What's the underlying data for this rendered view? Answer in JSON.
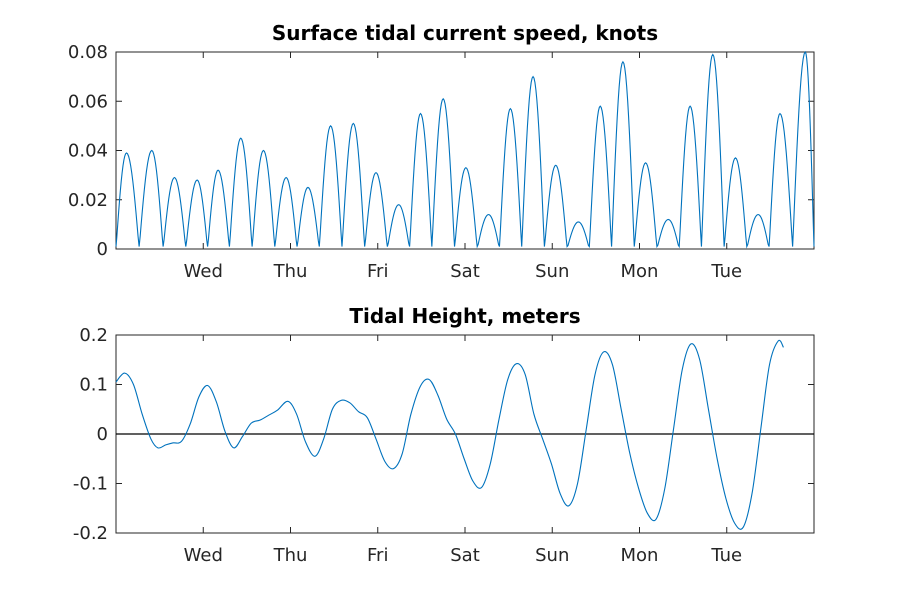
{
  "chart_data": [
    {
      "type": "line",
      "title": "Surface tidal current speed, knots",
      "xlabel": "",
      "ylabel": "",
      "x_ticks": [
        "Wed",
        "Thu",
        "Fri",
        "Sat",
        "Sun",
        "Mon",
        "Tue"
      ],
      "x_tick_days": [
        1,
        2,
        3,
        4,
        5,
        6,
        7
      ],
      "xlim_days": [
        0,
        8
      ],
      "ylim": [
        0,
        0.08
      ],
      "y_ticks": [
        0,
        0.02,
        0.04,
        0.06,
        0.08
      ],
      "y_tick_labels": [
        "0",
        "0.02",
        "0.04",
        "0.06",
        "0.08"
      ],
      "grid": false,
      "color": "#0072BD",
      "series": [
        {
          "peaks": [
            {
              "x": 0.12,
              "y": 0.039
            },
            {
              "x": 0.41,
              "y": 0.04
            },
            {
              "x": 0.67,
              "y": 0.029
            },
            {
              "x": 0.93,
              "y": 0.028
            },
            {
              "x": 1.17,
              "y": 0.032
            },
            {
              "x": 1.43,
              "y": 0.045
            },
            {
              "x": 1.69,
              "y": 0.04
            },
            {
              "x": 1.95,
              "y": 0.029
            },
            {
              "x": 2.2,
              "y": 0.025
            },
            {
              "x": 2.46,
              "y": 0.05
            },
            {
              "x": 2.72,
              "y": 0.051
            },
            {
              "x": 2.98,
              "y": 0.031
            },
            {
              "x": 3.24,
              "y": 0.018
            },
            {
              "x": 3.49,
              "y": 0.055
            },
            {
              "x": 3.75,
              "y": 0.061
            },
            {
              "x": 4.01,
              "y": 0.033
            },
            {
              "x": 4.27,
              "y": 0.014
            },
            {
              "x": 4.52,
              "y": 0.057
            },
            {
              "x": 4.78,
              "y": 0.07
            },
            {
              "x": 5.04,
              "y": 0.034
            },
            {
              "x": 5.3,
              "y": 0.011
            },
            {
              "x": 5.55,
              "y": 0.058
            },
            {
              "x": 5.81,
              "y": 0.076
            },
            {
              "x": 6.07,
              "y": 0.035
            },
            {
              "x": 6.33,
              "y": 0.012
            },
            {
              "x": 6.58,
              "y": 0.058
            },
            {
              "x": 6.84,
              "y": 0.079
            },
            {
              "x": 7.1,
              "y": 0.037
            },
            {
              "x": 7.36,
              "y": 0.014
            },
            {
              "x": 7.61,
              "y": 0.055
            },
            {
              "x": 7.9,
              "y": 0.08
            }
          ]
        }
      ]
    },
    {
      "type": "line",
      "title": "Tidal Height, meters",
      "xlabel": "",
      "ylabel": "",
      "x_ticks": [
        "Wed",
        "Thu",
        "Fri",
        "Sat",
        "Sun",
        "Mon",
        "Tue"
      ],
      "x_tick_days": [
        1,
        2,
        3,
        4,
        5,
        6,
        7
      ],
      "xlim_days": [
        0,
        8
      ],
      "ylim": [
        -0.2,
        0.2
      ],
      "y_ticks": [
        -0.2,
        -0.1,
        0,
        0.1,
        0.2
      ],
      "y_tick_labels": [
        "-0.2",
        "-0.1",
        "0",
        "0.1",
        "0.2"
      ],
      "zero_line": true,
      "grid": false,
      "color": "#0072BD",
      "series": [
        {
          "points": [
            {
              "x": 0.0,
              "y": 0.105
            },
            {
              "x": 0.1,
              "y": 0.123
            },
            {
              "x": 0.2,
              "y": 0.1
            },
            {
              "x": 0.3,
              "y": 0.04
            },
            {
              "x": 0.4,
              "y": -0.01
            },
            {
              "x": 0.48,
              "y": -0.028
            },
            {
              "x": 0.57,
              "y": -0.022
            },
            {
              "x": 0.65,
              "y": -0.018
            },
            {
              "x": 0.75,
              "y": -0.015
            },
            {
              "x": 0.85,
              "y": 0.02
            },
            {
              "x": 0.95,
              "y": 0.075
            },
            {
              "x": 1.05,
              "y": 0.098
            },
            {
              "x": 1.15,
              "y": 0.065
            },
            {
              "x": 1.25,
              "y": 0.005
            },
            {
              "x": 1.35,
              "y": -0.028
            },
            {
              "x": 1.45,
              "y": -0.005
            },
            {
              "x": 1.55,
              "y": 0.022
            },
            {
              "x": 1.65,
              "y": 0.028
            },
            {
              "x": 1.75,
              "y": 0.038
            },
            {
              "x": 1.85,
              "y": 0.048
            },
            {
              "x": 1.97,
              "y": 0.066
            },
            {
              "x": 2.07,
              "y": 0.04
            },
            {
              "x": 2.17,
              "y": -0.015
            },
            {
              "x": 2.28,
              "y": -0.045
            },
            {
              "x": 2.38,
              "y": -0.01
            },
            {
              "x": 2.48,
              "y": 0.05
            },
            {
              "x": 2.58,
              "y": 0.068
            },
            {
              "x": 2.68,
              "y": 0.063
            },
            {
              "x": 2.78,
              "y": 0.045
            },
            {
              "x": 2.88,
              "y": 0.033
            },
            {
              "x": 2.98,
              "y": -0.01
            },
            {
              "x": 3.08,
              "y": -0.055
            },
            {
              "x": 3.18,
              "y": -0.07
            },
            {
              "x": 3.28,
              "y": -0.04
            },
            {
              "x": 3.38,
              "y": 0.04
            },
            {
              "x": 3.49,
              "y": 0.097
            },
            {
              "x": 3.59,
              "y": 0.11
            },
            {
              "x": 3.69,
              "y": 0.078
            },
            {
              "x": 3.79,
              "y": 0.03
            },
            {
              "x": 3.89,
              "y": 0.0
            },
            {
              "x": 3.99,
              "y": -0.05
            },
            {
              "x": 4.09,
              "y": -0.095
            },
            {
              "x": 4.19,
              "y": -0.108
            },
            {
              "x": 4.29,
              "y": -0.06
            },
            {
              "x": 4.39,
              "y": 0.03
            },
            {
              "x": 4.49,
              "y": 0.11
            },
            {
              "x": 4.59,
              "y": 0.142
            },
            {
              "x": 4.69,
              "y": 0.12
            },
            {
              "x": 4.79,
              "y": 0.04
            },
            {
              "x": 4.89,
              "y": -0.01
            },
            {
              "x": 4.99,
              "y": -0.06
            },
            {
              "x": 5.09,
              "y": -0.12
            },
            {
              "x": 5.19,
              "y": -0.145
            },
            {
              "x": 5.29,
              "y": -0.1
            },
            {
              "x": 5.39,
              "y": 0.01
            },
            {
              "x": 5.49,
              "y": 0.12
            },
            {
              "x": 5.59,
              "y": 0.166
            },
            {
              "x": 5.69,
              "y": 0.14
            },
            {
              "x": 5.79,
              "y": 0.05
            },
            {
              "x": 5.89,
              "y": -0.04
            },
            {
              "x": 5.99,
              "y": -0.11
            },
            {
              "x": 6.09,
              "y": -0.16
            },
            {
              "x": 6.19,
              "y": -0.172
            },
            {
              "x": 6.29,
              "y": -0.11
            },
            {
              "x": 6.39,
              "y": 0.01
            },
            {
              "x": 6.49,
              "y": 0.13
            },
            {
              "x": 6.59,
              "y": 0.182
            },
            {
              "x": 6.69,
              "y": 0.15
            },
            {
              "x": 6.79,
              "y": 0.05
            },
            {
              "x": 6.89,
              "y": -0.05
            },
            {
              "x": 6.99,
              "y": -0.13
            },
            {
              "x": 7.09,
              "y": -0.18
            },
            {
              "x": 7.19,
              "y": -0.188
            },
            {
              "x": 7.29,
              "y": -0.12
            },
            {
              "x": 7.39,
              "y": 0.01
            },
            {
              "x": 7.49,
              "y": 0.14
            },
            {
              "x": 7.59,
              "y": 0.188
            },
            {
              "x": 7.65,
              "y": 0.175
            }
          ]
        }
      ]
    }
  ]
}
